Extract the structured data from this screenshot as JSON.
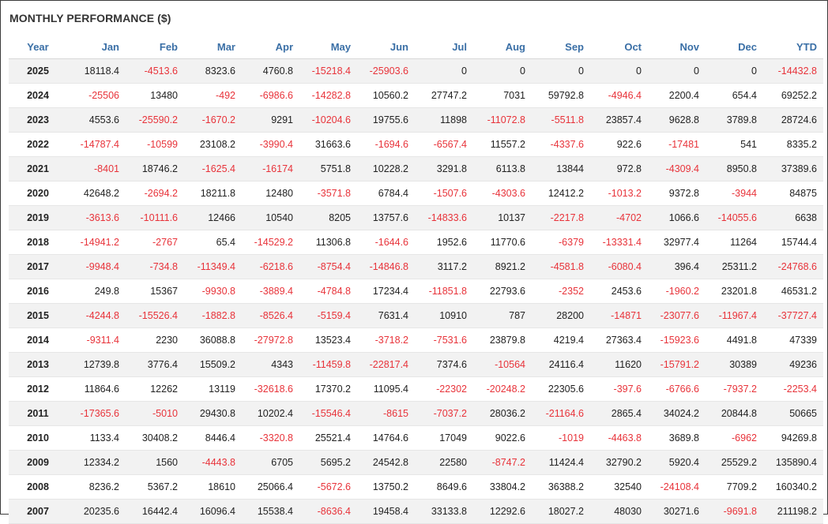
{
  "title": "MONTHLY PERFORMANCE ($)",
  "colors": {
    "header_text": "#3a6fa6",
    "negative": "#e8333a",
    "positive": "#222222",
    "stripe": "#f2f2f2"
  },
  "columns": [
    "Year",
    "Jan",
    "Feb",
    "Mar",
    "Apr",
    "May",
    "Jun",
    "Jul",
    "Aug",
    "Sep",
    "Oct",
    "Nov",
    "Dec",
    "YTD"
  ],
  "rows": [
    [
      "2025",
      "18118.4",
      "-4513.6",
      "8323.6",
      "4760.8",
      "-15218.4",
      "-25903.6",
      "0",
      "0",
      "0",
      "0",
      "0",
      "0",
      "-14432.8"
    ],
    [
      "2024",
      "-25506",
      "13480",
      "-492",
      "-6986.6",
      "-14282.8",
      "10560.2",
      "27747.2",
      "7031",
      "59792.8",
      "-4946.4",
      "2200.4",
      "654.4",
      "69252.2"
    ],
    [
      "2023",
      "4553.6",
      "-25590.2",
      "-1670.2",
      "9291",
      "-10204.6",
      "19755.6",
      "11898",
      "-11072.8",
      "-5511.8",
      "23857.4",
      "9628.8",
      "3789.8",
      "28724.6"
    ],
    [
      "2022",
      "-14787.4",
      "-10599",
      "23108.2",
      "-3990.4",
      "31663.6",
      "-1694.6",
      "-6567.4",
      "11557.2",
      "-4337.6",
      "922.6",
      "-17481",
      "541",
      "8335.2"
    ],
    [
      "2021",
      "-8401",
      "18746.2",
      "-1625.4",
      "-16174",
      "5751.8",
      "10228.2",
      "3291.8",
      "6113.8",
      "13844",
      "972.8",
      "-4309.4",
      "8950.8",
      "37389.6"
    ],
    [
      "2020",
      "42648.2",
      "-2694.2",
      "18211.8",
      "12480",
      "-3571.8",
      "6784.4",
      "-1507.6",
      "-4303.6",
      "12412.2",
      "-1013.2",
      "9372.8",
      "-3944",
      "84875"
    ],
    [
      "2019",
      "-3613.6",
      "-10111.6",
      "12466",
      "10540",
      "8205",
      "13757.6",
      "-14833.6",
      "10137",
      "-2217.8",
      "-4702",
      "1066.6",
      "-14055.6",
      "6638"
    ],
    [
      "2018",
      "-14941.2",
      "-2767",
      "65.4",
      "-14529.2",
      "11306.8",
      "-1644.6",
      "1952.6",
      "11770.6",
      "-6379",
      "-13331.4",
      "32977.4",
      "11264",
      "15744.4"
    ],
    [
      "2017",
      "-9948.4",
      "-734.8",
      "-11349.4",
      "-6218.6",
      "-8754.4",
      "-14846.8",
      "3117.2",
      "8921.2",
      "-4581.8",
      "-6080.4",
      "396.4",
      "25311.2",
      "-24768.6"
    ],
    [
      "2016",
      "249.8",
      "15367",
      "-9930.8",
      "-3889.4",
      "-4784.8",
      "17234.4",
      "-11851.8",
      "22793.6",
      "-2352",
      "2453.6",
      "-1960.2",
      "23201.8",
      "46531.2"
    ],
    [
      "2015",
      "-4244.8",
      "-15526.4",
      "-1882.8",
      "-8526.4",
      "-5159.4",
      "7631.4",
      "10910",
      "787",
      "28200",
      "-14871",
      "-23077.6",
      "-11967.4",
      "-37727.4"
    ],
    [
      "2014",
      "-9311.4",
      "2230",
      "36088.8",
      "-27972.8",
      "13523.4",
      "-3718.2",
      "-7531.6",
      "23879.8",
      "4219.4",
      "27363.4",
      "-15923.6",
      "4491.8",
      "47339"
    ],
    [
      "2013",
      "12739.8",
      "3776.4",
      "15509.2",
      "4343",
      "-11459.8",
      "-22817.4",
      "7374.6",
      "-10564",
      "24116.4",
      "11620",
      "-15791.2",
      "30389",
      "49236"
    ],
    [
      "2012",
      "11864.6",
      "12262",
      "13119",
      "-32618.6",
      "17370.2",
      "11095.4",
      "-22302",
      "-20248.2",
      "22305.6",
      "-397.6",
      "-6766.6",
      "-7937.2",
      "-2253.4"
    ],
    [
      "2011",
      "-17365.6",
      "-5010",
      "29430.8",
      "10202.4",
      "-15546.4",
      "-8615",
      "-7037.2",
      "28036.2",
      "-21164.6",
      "2865.4",
      "34024.2",
      "20844.8",
      "50665"
    ],
    [
      "2010",
      "1133.4",
      "30408.2",
      "8446.4",
      "-3320.8",
      "25521.4",
      "14764.6",
      "17049",
      "9022.6",
      "-1019",
      "-4463.8",
      "3689.8",
      "-6962",
      "94269.8"
    ],
    [
      "2009",
      "12334.2",
      "1560",
      "-4443.8",
      "6705",
      "5695.2",
      "24542.8",
      "22580",
      "-8747.2",
      "11424.4",
      "32790.2",
      "5920.4",
      "25529.2",
      "135890.4"
    ],
    [
      "2008",
      "8236.2",
      "5367.2",
      "18610",
      "25066.4",
      "-5672.6",
      "13750.2",
      "8649.6",
      "33804.2",
      "36388.2",
      "32540",
      "-24108.4",
      "7709.2",
      "160340.2"
    ],
    [
      "2007",
      "20235.6",
      "16442.4",
      "16096.4",
      "15538.4",
      "-8636.4",
      "19458.4",
      "33133.8",
      "12292.6",
      "18027.2",
      "48030",
      "30271.6",
      "-9691.8",
      "211198.2"
    ]
  ]
}
